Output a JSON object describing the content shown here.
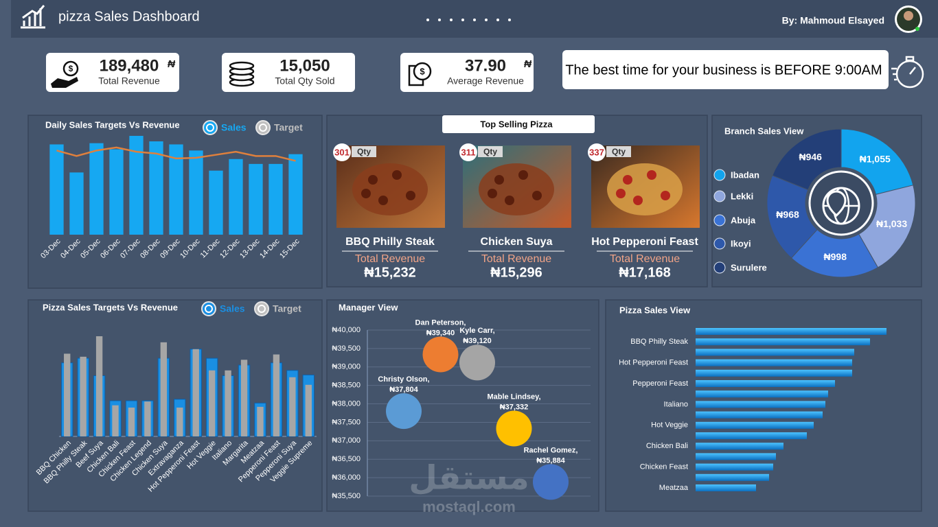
{
  "header": {
    "title": "pizza Sales Dashboard",
    "author": "By: Mahmoud Elsayed"
  },
  "kpis": [
    {
      "value": "189,480",
      "currency": "₦",
      "label": "Total Revenue"
    },
    {
      "value": "15,050",
      "label": "Total Qty Sold"
    },
    {
      "value": "37.90",
      "currency": "₦",
      "label": "Average Revenue"
    }
  ],
  "message": "The best time for your business is BEFORE 9:00AM",
  "top_selling": {
    "title": "Top Selling Pizza",
    "items": [
      {
        "qty": "301",
        "qty_label": "Qty",
        "name": "BBQ Philly Steak",
        "revenue_label": "Total Revenue",
        "revenue": "₦15,232"
      },
      {
        "qty": "311",
        "qty_label": "Qty",
        "name": "Chicken Suya",
        "revenue_label": "Total Revenue",
        "revenue": "₦15,296"
      },
      {
        "qty": "337",
        "qty_label": "Qty",
        "name": "Hot Pepperoni Feast",
        "revenue_label": "Total Revenue",
        "revenue": "₦17,168"
      }
    ]
  },
  "watermark": {
    "arabic": "مستقل",
    "latin": "mostaql.com"
  },
  "chart_data": [
    {
      "type": "bar",
      "title": "Daily Sales Targets Vs Revenue",
      "categories": [
        "03-Dec",
        "04-Dec",
        "05-Dec",
        "06-Dec",
        "07-Dec",
        "08-Dec",
        "09-Dec",
        "10-Dec",
        "11-Dec",
        "12-Dec",
        "13-Dec",
        "14-Dec",
        "15-Dec"
      ],
      "series": [
        {
          "name": "Sales",
          "color": "#16a8f2",
          "values": [
            14800,
            10200,
            15000,
            14000,
            16200,
            15300,
            14800,
            13800,
            10500,
            12400,
            11600,
            11600,
            13200
          ]
        },
        {
          "name": "Target",
          "color": "#e0803c",
          "type": "line",
          "values": [
            13800,
            12900,
            13800,
            14300,
            13600,
            13300,
            12500,
            12600,
            13100,
            13600,
            12900,
            12900,
            12100
          ]
        }
      ]
    },
    {
      "type": "bar",
      "title": "Pizza Sales Targets Vs Revenue",
      "categories": [
        "BBQ Chicken",
        "BBQ Philly Steak",
        "Beef Suya",
        "Chicken Bali",
        "Chicken Feast",
        "Chicken Legend",
        "Chicken Suya",
        "Extravaganza",
        "Hot Pepperoni Feast",
        "Hot Veggie",
        "Italiano",
        "Margarita",
        "Meatzaa",
        "Pepperoni Feast",
        "Pepperoni Suya",
        "Veggie Supreme"
      ],
      "series": [
        {
          "name": "Sales",
          "color": "#1a8fe3",
          "values": [
            9700,
            10300,
            8000,
            4700,
            4700,
            4700,
            10300,
            4900,
            11500,
            10300,
            8000,
            9400,
            4400,
            9700,
            8700,
            8100
          ]
        },
        {
          "name": "Target",
          "color": "#a6a6a6",
          "values": [
            10900,
            10500,
            13200,
            4100,
            3800,
            4600,
            12400,
            3800,
            11500,
            8700,
            8700,
            10100,
            3900,
            10800,
            7800,
            6800
          ]
        }
      ]
    },
    {
      "type": "pie",
      "title": "Branch Sales View",
      "categories": [
        "Ibadan",
        "Lekki",
        "Abuja",
        "Ikoyi",
        "Surulere"
      ],
      "values": [
        1055,
        1033,
        998,
        968,
        946
      ],
      "value_labels": [
        "₦1,055",
        "₦1,033",
        "₦998",
        "₦968",
        "₦946"
      ],
      "colors": [
        "#12a4ee",
        "#8fa6dd",
        "#3a72d4",
        "#2e58aa",
        "#233f78"
      ]
    },
    {
      "type": "bubble",
      "title": "Manager View",
      "categories": [
        "Christy Olson,",
        "Dan Peterson,",
        "Kyle Carr,",
        "Mable Lindsey,",
        "Rachel Gomez,"
      ],
      "values": [
        37804,
        39340,
        39120,
        37332,
        35884
      ],
      "value_labels": [
        "₦37,804",
        "₦39,340",
        "₦39,120",
        "₦37,332",
        "₦35,884"
      ],
      "colors": [
        "#5b9bd5",
        "#ed7d31",
        "#a5a5a5",
        "#ffc000",
        "#4472c4"
      ],
      "ylim": [
        35500,
        40000
      ],
      "yticks": [
        {
          "value": 35500,
          "label": "₦35,500"
        },
        {
          "value": 36000,
          "label": "₦36,000"
        },
        {
          "value": 36500,
          "label": "₦36,500"
        },
        {
          "value": 37000,
          "label": "₦37,000"
        },
        {
          "value": 37500,
          "label": "₦37,500"
        },
        {
          "value": 38000,
          "label": "₦38,000"
        },
        {
          "value": 38500,
          "label": "₦38,500"
        },
        {
          "value": 39000,
          "label": "₦39,000"
        },
        {
          "value": 39500,
          "label": "₦39,500"
        },
        {
          "value": 40000,
          "label": "₦40,000"
        }
      ],
      "grid": true
    },
    {
      "type": "hbar",
      "title": "Pizza Sales View",
      "categories": [
        null,
        "BBQ Philly Steak",
        null,
        "Hot Pepperoni Feast",
        null,
        "Pepperoni Feast",
        null,
        "Italiano",
        null,
        "Hot Veggie",
        null,
        "Chicken Bali",
        null,
        "Chicken Feast",
        null,
        "Meatzaa"
      ],
      "values": [
        1112,
        1016,
        924,
        912,
        912,
        812,
        772,
        756,
        740,
        688,
        648,
        512,
        468,
        452,
        428,
        352
      ],
      "color": "#18a0ec"
    }
  ]
}
